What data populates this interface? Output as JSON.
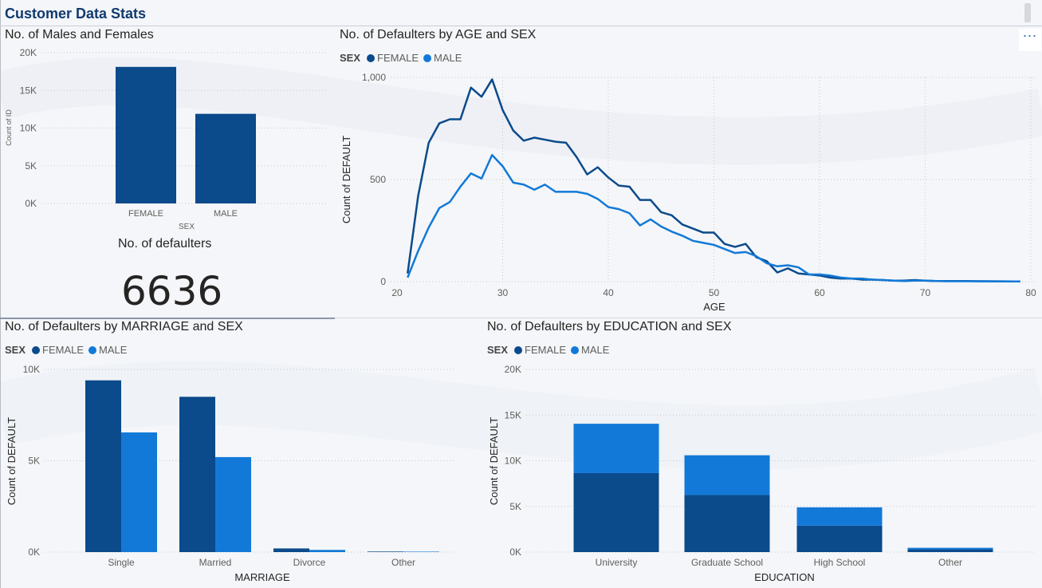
{
  "page": {
    "title": "Customer Data Stats"
  },
  "card": {
    "label": "No. of defaulters",
    "value": "6636"
  },
  "colors": {
    "female": "#0b4a8b",
    "male": "#1279d8",
    "single": "#0b4a8b"
  },
  "legend_labels": {
    "title": "SEX",
    "female": "FEMALE",
    "male": "MALE"
  },
  "more_options_icon": "ellipsis-icon",
  "chart_data": [
    {
      "type": "bar",
      "title": "No. of Males and Females",
      "xlabel": "SEX",
      "ylabel": "Count of ID",
      "categories": [
        "FEMALE",
        "MALE"
      ],
      "values": [
        18112,
        11888
      ],
      "ylim": [
        0,
        20000
      ],
      "yticks": [
        "0K",
        "5K",
        "10K",
        "15K",
        "20K"
      ],
      "grid": true
    },
    {
      "type": "line",
      "title": "No. of Defaulters by AGE and SEX",
      "xlabel": "AGE",
      "ylabel": "Count of DEFAULT",
      "legend_title": "SEX",
      "legend_position": "top-left",
      "xlim": [
        20,
        80
      ],
      "ylim": [
        0,
        1000
      ],
      "xticks": [
        "20",
        "30",
        "40",
        "50",
        "60",
        "70",
        "80"
      ],
      "yticks": [
        "0",
        "500",
        "1,000"
      ],
      "grid": true,
      "x": [
        21,
        22,
        23,
        24,
        25,
        26,
        27,
        28,
        29,
        30,
        31,
        32,
        33,
        34,
        35,
        36,
        37,
        38,
        39,
        40,
        41,
        42,
        43,
        44,
        45,
        46,
        47,
        48,
        49,
        50,
        51,
        52,
        53,
        54,
        55,
        56,
        57,
        58,
        59,
        60,
        61,
        62,
        63,
        64,
        65,
        66,
        67,
        68,
        69,
        70,
        71,
        72,
        73,
        74,
        75,
        79
      ],
      "series": [
        {
          "name": "FEMALE",
          "values": [
            40,
            420,
            680,
            775,
            795,
            795,
            950,
            905,
            990,
            840,
            740,
            690,
            705,
            695,
            685,
            680,
            610,
            525,
            560,
            510,
            470,
            465,
            400,
            400,
            340,
            325,
            280,
            260,
            240,
            240,
            185,
            170,
            185,
            120,
            100,
            45,
            65,
            40,
            35,
            30,
            20,
            15,
            15,
            10,
            10,
            8,
            5,
            5,
            8,
            5,
            3,
            3,
            3,
            3,
            2,
            1
          ]
        },
        {
          "name": "MALE",
          "values": [
            20,
            150,
            265,
            360,
            390,
            465,
            530,
            505,
            620,
            565,
            485,
            475,
            450,
            475,
            440,
            440,
            440,
            430,
            405,
            365,
            355,
            335,
            275,
            305,
            270,
            245,
            225,
            200,
            190,
            180,
            160,
            140,
            145,
            125,
            90,
            75,
            80,
            70,
            35,
            35,
            30,
            20,
            15,
            15,
            10,
            8,
            5,
            3,
            5,
            5,
            3,
            2,
            2,
            2,
            2,
            1
          ]
        }
      ]
    },
    {
      "type": "bar",
      "title": "No. of Defaulters by MARRIAGE and SEX",
      "xlabel": "MARRIAGE",
      "ylabel": "Count of DEFAULT",
      "legend_title": "SEX",
      "legend_position": "top-left",
      "categories": [
        "Single",
        "Married",
        "Divorce",
        "Other"
      ],
      "series": [
        {
          "name": "FEMALE",
          "values": [
            9400,
            8500,
            200,
            30
          ]
        },
        {
          "name": "MALE",
          "values": [
            6550,
            5200,
            120,
            25
          ]
        }
      ],
      "ylim": [
        0,
        10000
      ],
      "yticks": [
        "0K",
        "5K",
        "10K"
      ],
      "grid": true
    },
    {
      "type": "bar",
      "stacked": true,
      "title": "No. of Defaulters by EDUCATION and SEX",
      "xlabel": "EDUCATION",
      "ylabel": "Count of DEFAULT",
      "legend_title": "SEX",
      "legend_position": "top-left",
      "categories": [
        "University",
        "Graduate School",
        "High School",
        "Other"
      ],
      "series": [
        {
          "name": "FEMALE",
          "values": [
            8650,
            6250,
            2900,
            300
          ]
        },
        {
          "name": "MALE",
          "values": [
            5400,
            4350,
            2000,
            170
          ]
        }
      ],
      "ylim": [
        0,
        20000
      ],
      "yticks": [
        "0K",
        "5K",
        "10K",
        "15K",
        "20K"
      ],
      "grid": true
    }
  ]
}
